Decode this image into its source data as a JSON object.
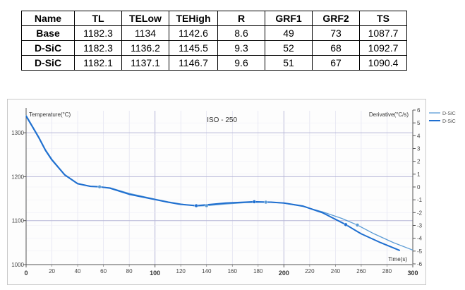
{
  "table": {
    "headers": [
      "Name",
      "TL",
      "TELow",
      "TEHigh",
      "R",
      "GRF1",
      "GRF2",
      "TS"
    ],
    "rows": [
      [
        "Base",
        "1182.3",
        "1134",
        "1142.6",
        "8.6",
        "49",
        "73",
        "1087.7"
      ],
      [
        "D-SiC",
        "1182.3",
        "1136.2",
        "1145.5",
        "9.3",
        "52",
        "68",
        "1092.7"
      ],
      [
        "D-SiC",
        "1182.1",
        "1137.1",
        "1146.7",
        "9.6",
        "51",
        "67",
        "1090.4"
      ]
    ]
  },
  "chart_data": {
    "type": "line",
    "title": "ISO - 250",
    "ylabel": "Temperature(°C)",
    "y2label": "Derivative(°C/s)",
    "xlabel": "Time(s)",
    "xlim": [
      0,
      300
    ],
    "ylim": [
      1000,
      1350
    ],
    "y2lim": [
      -6,
      6
    ],
    "x_major_ticks": [
      0,
      100,
      200,
      300
    ],
    "x_minor_ticks": [
      20,
      40,
      60,
      80,
      120,
      140,
      160,
      180,
      220,
      240,
      260,
      280
    ],
    "y_ticks": [
      1000,
      1100,
      1200,
      1300
    ],
    "y2_ticks": [
      6,
      5,
      4,
      3,
      2,
      1,
      0,
      -1,
      -2,
      -3,
      -4,
      -5,
      -6
    ],
    "legend_position": "right",
    "colors": {
      "series1": "#5b9bd5",
      "series2": "#1f6fd0",
      "grid": "#b8b8d8"
    },
    "series": [
      {
        "name": "D-SiC",
        "x": [
          0,
          2,
          5,
          10,
          15,
          20,
          30,
          40,
          50,
          57,
          65,
          80,
          100,
          110,
          120,
          132,
          140,
          155,
          170,
          186,
          200,
          215,
          230,
          245,
          257,
          270,
          285,
          300
        ],
        "y": [
          1340,
          1330,
          1315,
          1290,
          1262,
          1240,
          1205,
          1185,
          1178,
          1177,
          1175,
          1162,
          1149,
          1143,
          1138,
          1133,
          1134,
          1138,
          1141,
          1142,
          1140,
          1132,
          1120,
          1105,
          1090,
          1070,
          1050,
          1033
        ]
      },
      {
        "name": "D-SiC",
        "x": [
          0,
          2,
          5,
          10,
          15,
          20,
          30,
          40,
          50,
          57,
          65,
          80,
          100,
          110,
          120,
          132,
          140,
          155,
          170,
          177,
          190,
          200,
          215,
          230,
          248,
          260,
          275,
          290
        ],
        "y": [
          1338,
          1328,
          1313,
          1288,
          1260,
          1238,
          1204,
          1184,
          1178,
          1177,
          1174,
          1160,
          1148,
          1142,
          1137,
          1134,
          1136,
          1140,
          1142,
          1143,
          1142,
          1140,
          1133,
          1118,
          1091,
          1070,
          1050,
          1032
        ]
      }
    ],
    "markers": [
      {
        "series": 0,
        "x": 57,
        "y": 1177
      },
      {
        "series": 0,
        "x": 140,
        "y": 1134
      },
      {
        "series": 0,
        "x": 186,
        "y": 1142
      },
      {
        "series": 0,
        "x": 257,
        "y": 1090
      },
      {
        "series": 1,
        "x": 132,
        "y": 1134
      },
      {
        "series": 1,
        "x": 177,
        "y": 1143
      },
      {
        "series": 1,
        "x": 248,
        "y": 1091
      }
    ]
  }
}
